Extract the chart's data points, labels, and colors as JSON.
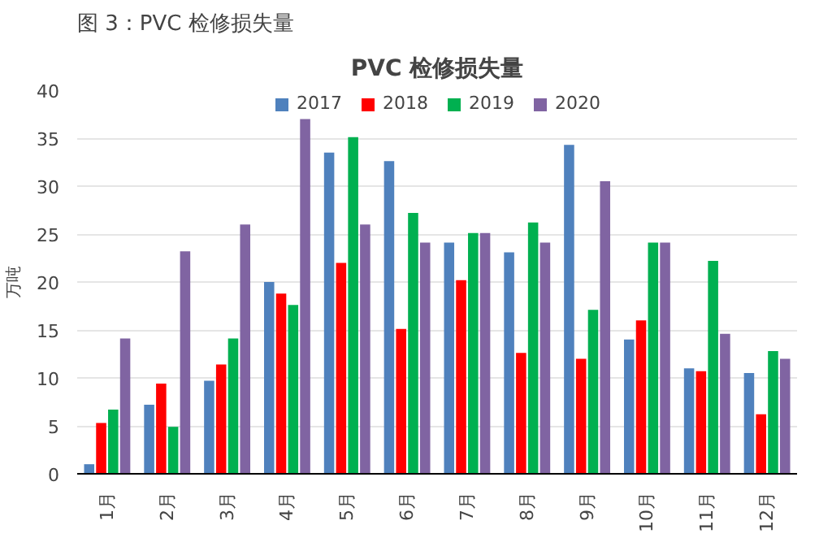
{
  "chart_data": {
    "type": "bar",
    "title": "图 3：PVC 检修损失量",
    "subtitle": "PVC 检修损失量",
    "ylabel": "万吨",
    "categories": [
      "1月",
      "2月",
      "3月",
      "4月",
      "5月",
      "6月",
      "7月",
      "8月",
      "9月",
      "10月",
      "11月",
      "12月"
    ],
    "series": [
      {
        "name": "2017",
        "color": "#4f81bd",
        "values": [
          1,
          7.2,
          9.7,
          20,
          33.5,
          32.6,
          24.1,
          23.1,
          34.3,
          14,
          11,
          10.5
        ]
      },
      {
        "name": "2018",
        "color": "#ff0000",
        "values": [
          5.3,
          9.4,
          11.4,
          18.8,
          22,
          15.1,
          20.2,
          12.6,
          12,
          16,
          10.7,
          6.2
        ]
      },
      {
        "name": "2019",
        "color": "#00b050",
        "values": [
          6.7,
          4.9,
          14.1,
          17.6,
          35.1,
          27.2,
          25.1,
          26.2,
          17.1,
          24.1,
          22.2,
          12.8
        ]
      },
      {
        "name": "2020",
        "color": "#8064a2",
        "values": [
          14.1,
          23.2,
          26,
          37,
          26,
          24.1,
          25.1,
          24.1,
          30.5,
          24.1,
          14.6,
          12
        ]
      }
    ],
    "ylim": [
      0,
      40
    ],
    "yticks": [
      0,
      5,
      10,
      15,
      20,
      25,
      30,
      35,
      40
    ],
    "grid": "y",
    "legend": "top"
  }
}
